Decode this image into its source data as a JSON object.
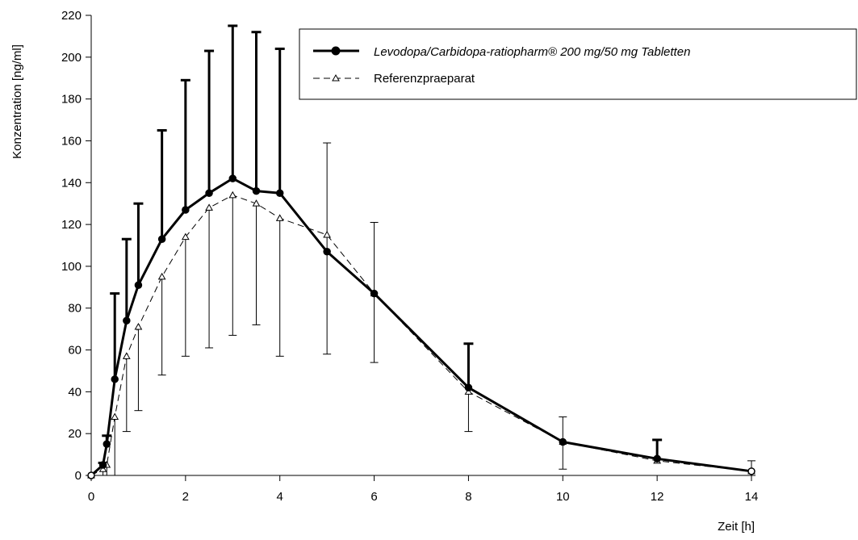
{
  "chart_data": {
    "type": "line",
    "title": "",
    "xlabel": "Zeit [h]",
    "ylabel": "Konzentration [ng/ml]",
    "xlim": [
      0,
      14
    ],
    "ylim": [
      0,
      220
    ],
    "xticks": [
      0,
      2,
      4,
      6,
      8,
      10,
      12,
      14
    ],
    "yticks": [
      0,
      20,
      40,
      60,
      80,
      100,
      120,
      140,
      160,
      180,
      200,
      220
    ],
    "grid": false,
    "legend_position": "top-right",
    "series": [
      {
        "name": "Levodopa/Carbidopa-ratiopharm® 200 mg/50 mg Tabletten",
        "style": "solid-bold",
        "marker": "filled-circle",
        "color": "#000000",
        "x": [
          0,
          0.25,
          0.33,
          0.5,
          0.75,
          1,
          1.5,
          2,
          2.5,
          3,
          3.5,
          4,
          5,
          6,
          8,
          10,
          12,
          14
        ],
        "y": [
          0,
          5,
          15,
          46,
          74,
          91,
          113,
          127,
          135,
          142,
          136,
          135,
          107,
          87,
          42,
          16,
          8,
          2
        ],
        "error_upper": [
          0,
          6,
          19,
          87,
          113,
          130,
          165,
          189,
          203,
          215,
          212,
          204,
          107,
          87,
          63,
          16,
          17,
          2
        ]
      },
      {
        "name": "Referenzpraeparat",
        "style": "dashed-thin",
        "marker": "open-triangle",
        "color": "#000000",
        "x": [
          0,
          0.25,
          0.33,
          0.5,
          0.75,
          1,
          1.5,
          2,
          2.5,
          3,
          3.5,
          4,
          5,
          6,
          8,
          10,
          12,
          14
        ],
        "y": [
          0,
          3,
          5,
          28,
          57,
          71,
          95,
          114,
          128,
          134,
          130,
          123,
          115,
          87,
          40,
          16,
          7,
          2
        ],
        "error_lower": [
          0,
          0,
          0,
          0,
          21,
          31,
          48,
          57,
          61,
          67,
          72,
          57,
          58,
          54,
          21,
          3,
          7,
          0
        ],
        "error_upper": [
          0,
          3,
          5,
          28,
          57,
          71,
          95,
          114,
          128,
          134,
          130,
          123,
          159,
          121,
          40,
          28,
          7,
          7
        ]
      }
    ]
  }
}
